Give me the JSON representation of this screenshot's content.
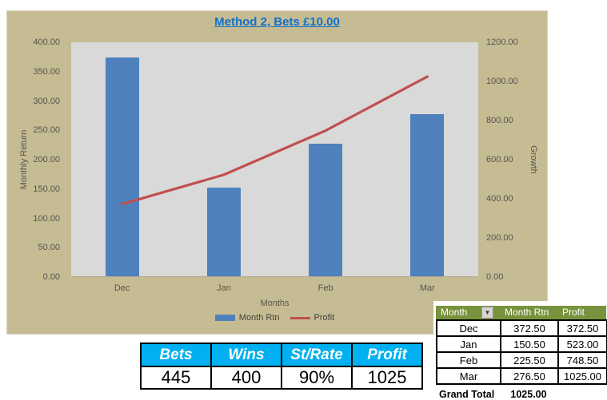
{
  "chart_data": {
    "type": "combo",
    "title": "Method 2, Bets £10.00",
    "categories": [
      "Dec",
      "Jan",
      "Feb",
      "Mar"
    ],
    "series": [
      {
        "name": "Month Rtn",
        "type": "bar",
        "axis": "left",
        "color": "#4f81bd",
        "values": [
          372.5,
          150.5,
          225.5,
          276.5
        ]
      },
      {
        "name": "Profit",
        "type": "line",
        "axis": "right",
        "color": "#c0504d",
        "values": [
          372.5,
          523.0,
          748.5,
          1025.0
        ]
      }
    ],
    "xlabel": "Months",
    "left_axis": {
      "title": "Monthly Return",
      "min": 0,
      "max": 400,
      "ticks": [
        "400.00",
        "350.00",
        "300.00",
        "250.00",
        "200.00",
        "150.00",
        "100.00",
        "50.00",
        "0.00"
      ]
    },
    "right_axis": {
      "title": "Growth",
      "min": 0,
      "max": 1200,
      "ticks": [
        "1200.00",
        "1000.00",
        "800.00",
        "600.00",
        "400.00",
        "200.00",
        "0.00"
      ]
    },
    "legend_position": "bottom",
    "grid": false,
    "colors": {
      "chart_background": "#c5bc94",
      "plot_background": "#d9d9d9",
      "title": "#1371c6",
      "axis_text": "#57544b"
    }
  },
  "month_table": {
    "columns": [
      "Month",
      "Month Rtn",
      "Profit"
    ],
    "filter_icon": "chevron-down-icon",
    "header_color": "#78933d",
    "rows": [
      {
        "month": "Dec",
        "month_rtn": "372.50",
        "profit": "372.50"
      },
      {
        "month": "Jan",
        "month_rtn": "150.50",
        "profit": "523.00"
      },
      {
        "month": "Feb",
        "month_rtn": "225.50",
        "profit": "748.50"
      },
      {
        "month": "Mar",
        "month_rtn": "276.50",
        "profit": "1025.00"
      }
    ],
    "footer": {
      "label": "Grand Total",
      "value": "1025.00"
    }
  },
  "summary_table": {
    "columns": [
      "Bets",
      "Wins",
      "St/Rate",
      "Profit"
    ],
    "values": [
      "445",
      "400",
      "90%",
      "1025"
    ],
    "header_color": "#00b0f0"
  }
}
